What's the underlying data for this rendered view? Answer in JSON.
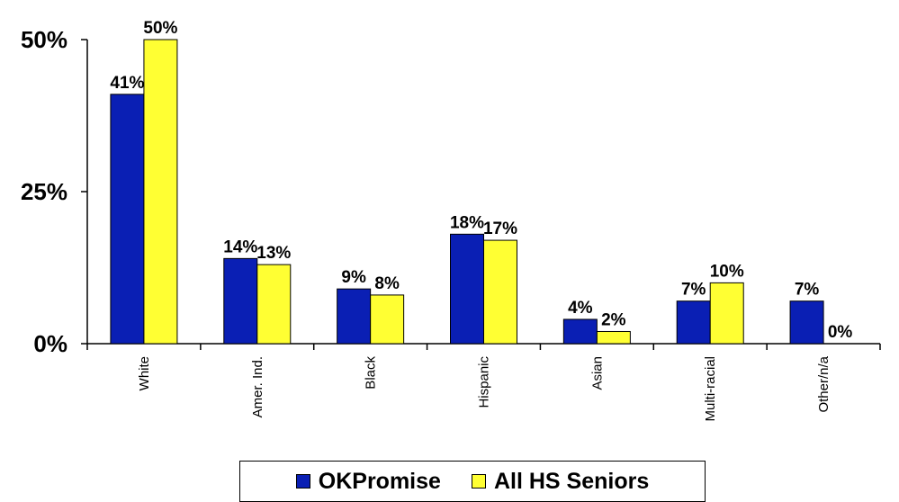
{
  "chart_data": {
    "type": "bar",
    "categories": [
      "White",
      "Amer. Ind.",
      "Black",
      "Hispanic",
      "Asian",
      "Multi-racial",
      "Other/n/a"
    ],
    "series": [
      {
        "name": "OKPromise",
        "values": [
          41,
          14,
          9,
          18,
          4,
          7,
          7
        ],
        "labels": [
          "41%",
          "14%",
          "9%",
          "18%",
          "4%",
          "7%",
          "7%"
        ],
        "color": "#0a1fb4"
      },
      {
        "name": "All HS Seniors",
        "values": [
          50,
          13,
          8,
          17,
          2,
          10,
          0
        ],
        "labels": [
          "50%",
          "13%",
          "8%",
          "17%",
          "2%",
          "10%",
          "0%"
        ],
        "color": "#ffff33"
      }
    ],
    "ylim": [
      0,
      50
    ],
    "yticks": [
      0,
      25,
      50
    ],
    "ytick_labels": [
      "0%",
      "25%",
      "50%"
    ],
    "grid": false,
    "legend_position": "bottom"
  },
  "legend": {
    "items": [
      {
        "label": "OKPromise",
        "color": "#0a1fb4"
      },
      {
        "label": "All HS Seniors",
        "color": "#ffff33"
      }
    ]
  }
}
